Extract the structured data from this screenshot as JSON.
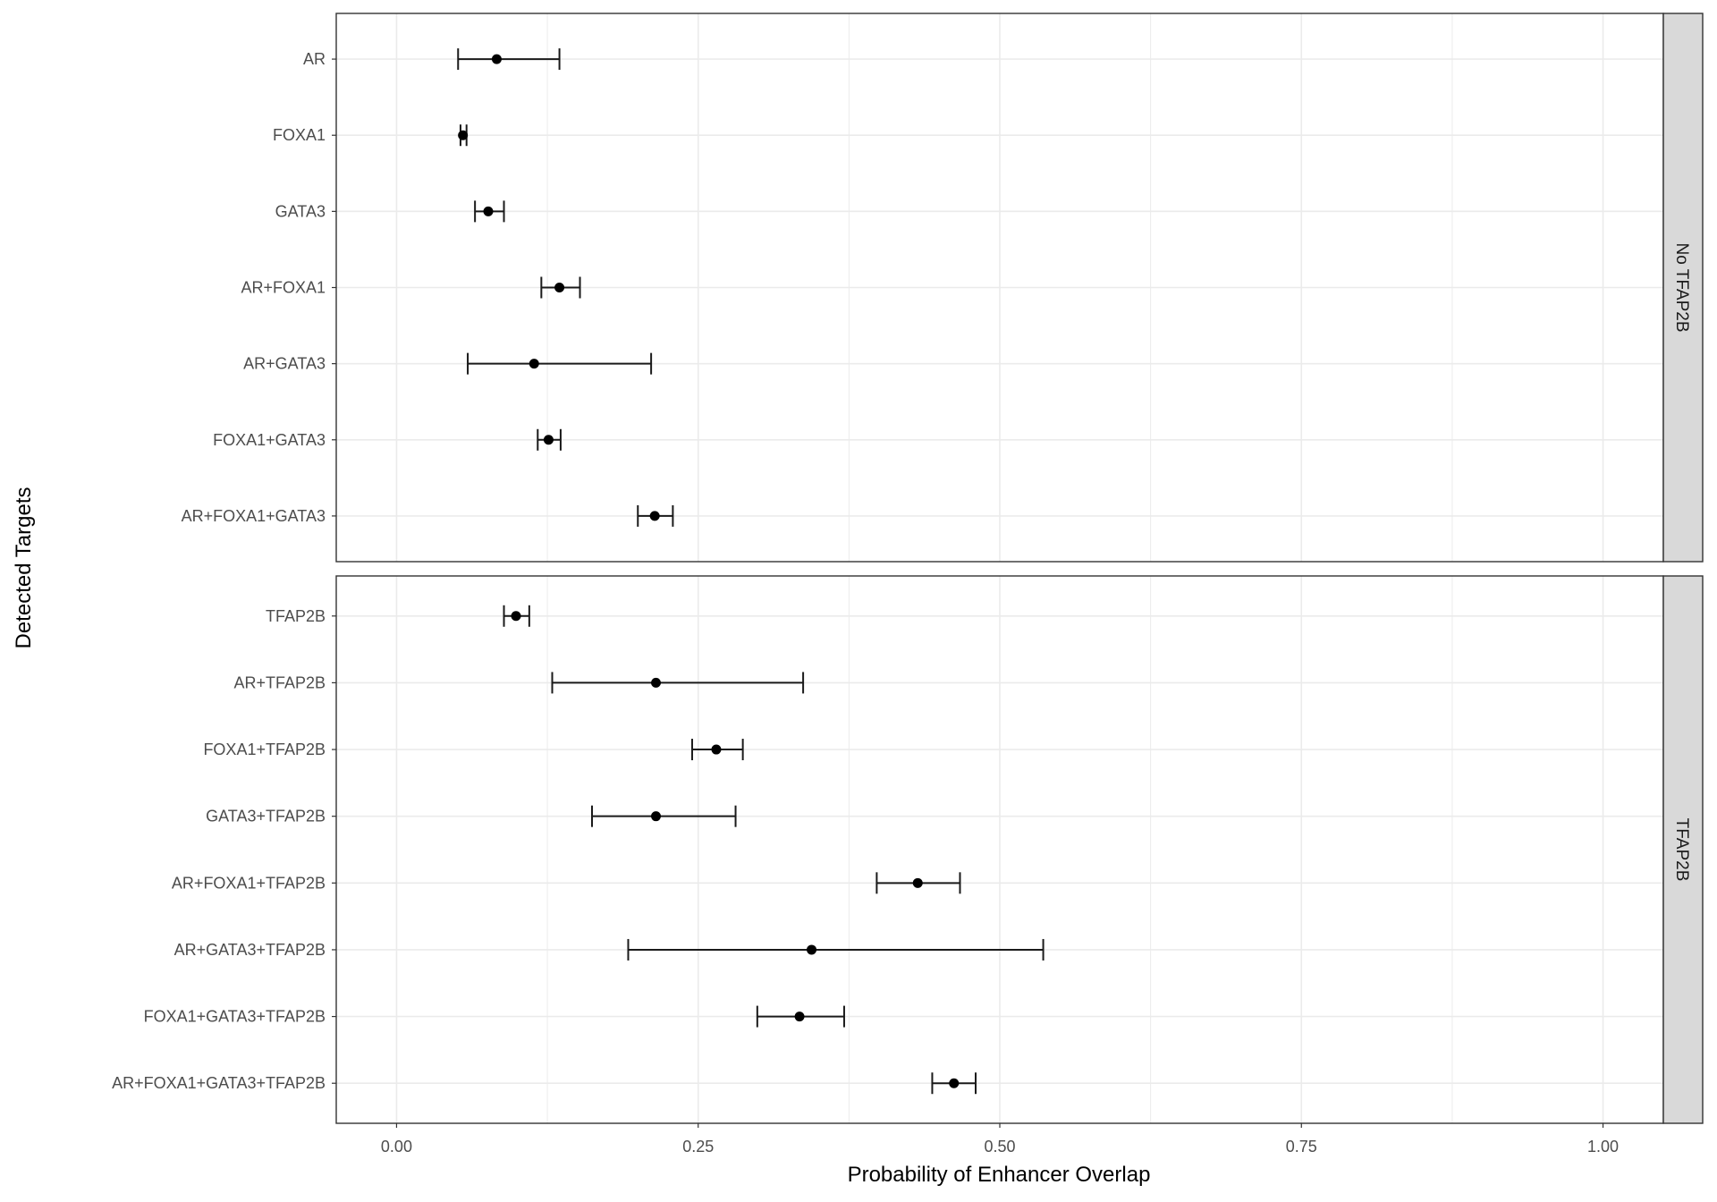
{
  "chart_data": {
    "type": "scatter",
    "subtype": "point-with-errorbars, faceted",
    "xlabel": "Probability of Enhancer Overlap",
    "ylabel": "Detected Targets",
    "xlim": [
      -0.05,
      1.05
    ],
    "xticks": [
      "0.00",
      "0.25",
      "0.50",
      "0.75",
      "1.00"
    ],
    "grid": true,
    "colors": {
      "point": "#000000",
      "grid": "#ebebeb",
      "strip": "#d9d9d9",
      "panel_border": "#333333"
    },
    "facets": [
      {
        "strip_label": "No TFAP2B",
        "rows": [
          {
            "label": "AR",
            "value": 0.083,
            "lower": 0.051,
            "upper": 0.135
          },
          {
            "label": "FOXA1",
            "value": 0.055,
            "lower": 0.053,
            "upper": 0.058
          },
          {
            "label": "GATA3",
            "value": 0.076,
            "lower": 0.065,
            "upper": 0.089
          },
          {
            "label": "AR+FOXA1",
            "value": 0.135,
            "lower": 0.12,
            "upper": 0.152
          },
          {
            "label": "AR+GATA3",
            "value": 0.114,
            "lower": 0.059,
            "upper": 0.211
          },
          {
            "label": "FOXA1+GATA3",
            "value": 0.126,
            "lower": 0.117,
            "upper": 0.136
          },
          {
            "label": "AR+FOXA1+GATA3",
            "value": 0.214,
            "lower": 0.2,
            "upper": 0.229
          }
        ]
      },
      {
        "strip_label": "TFAP2B",
        "rows": [
          {
            "label": "TFAP2B",
            "value": 0.099,
            "lower": 0.089,
            "upper": 0.11
          },
          {
            "label": "AR+TFAP2B",
            "value": 0.215,
            "lower": 0.129,
            "upper": 0.337
          },
          {
            "label": "FOXA1+TFAP2B",
            "value": 0.265,
            "lower": 0.245,
            "upper": 0.287
          },
          {
            "label": "GATA3+TFAP2B",
            "value": 0.215,
            "lower": 0.162,
            "upper": 0.281
          },
          {
            "label": "AR+FOXA1+TFAP2B",
            "value": 0.432,
            "lower": 0.398,
            "upper": 0.467
          },
          {
            "label": "AR+GATA3+TFAP2B",
            "value": 0.344,
            "lower": 0.192,
            "upper": 0.536
          },
          {
            "label": "FOXA1+GATA3+TFAP2B",
            "value": 0.334,
            "lower": 0.299,
            "upper": 0.371
          },
          {
            "label": "AR+FOXA1+GATA3+TFAP2B",
            "value": 0.462,
            "lower": 0.444,
            "upper": 0.48
          }
        ]
      }
    ]
  }
}
